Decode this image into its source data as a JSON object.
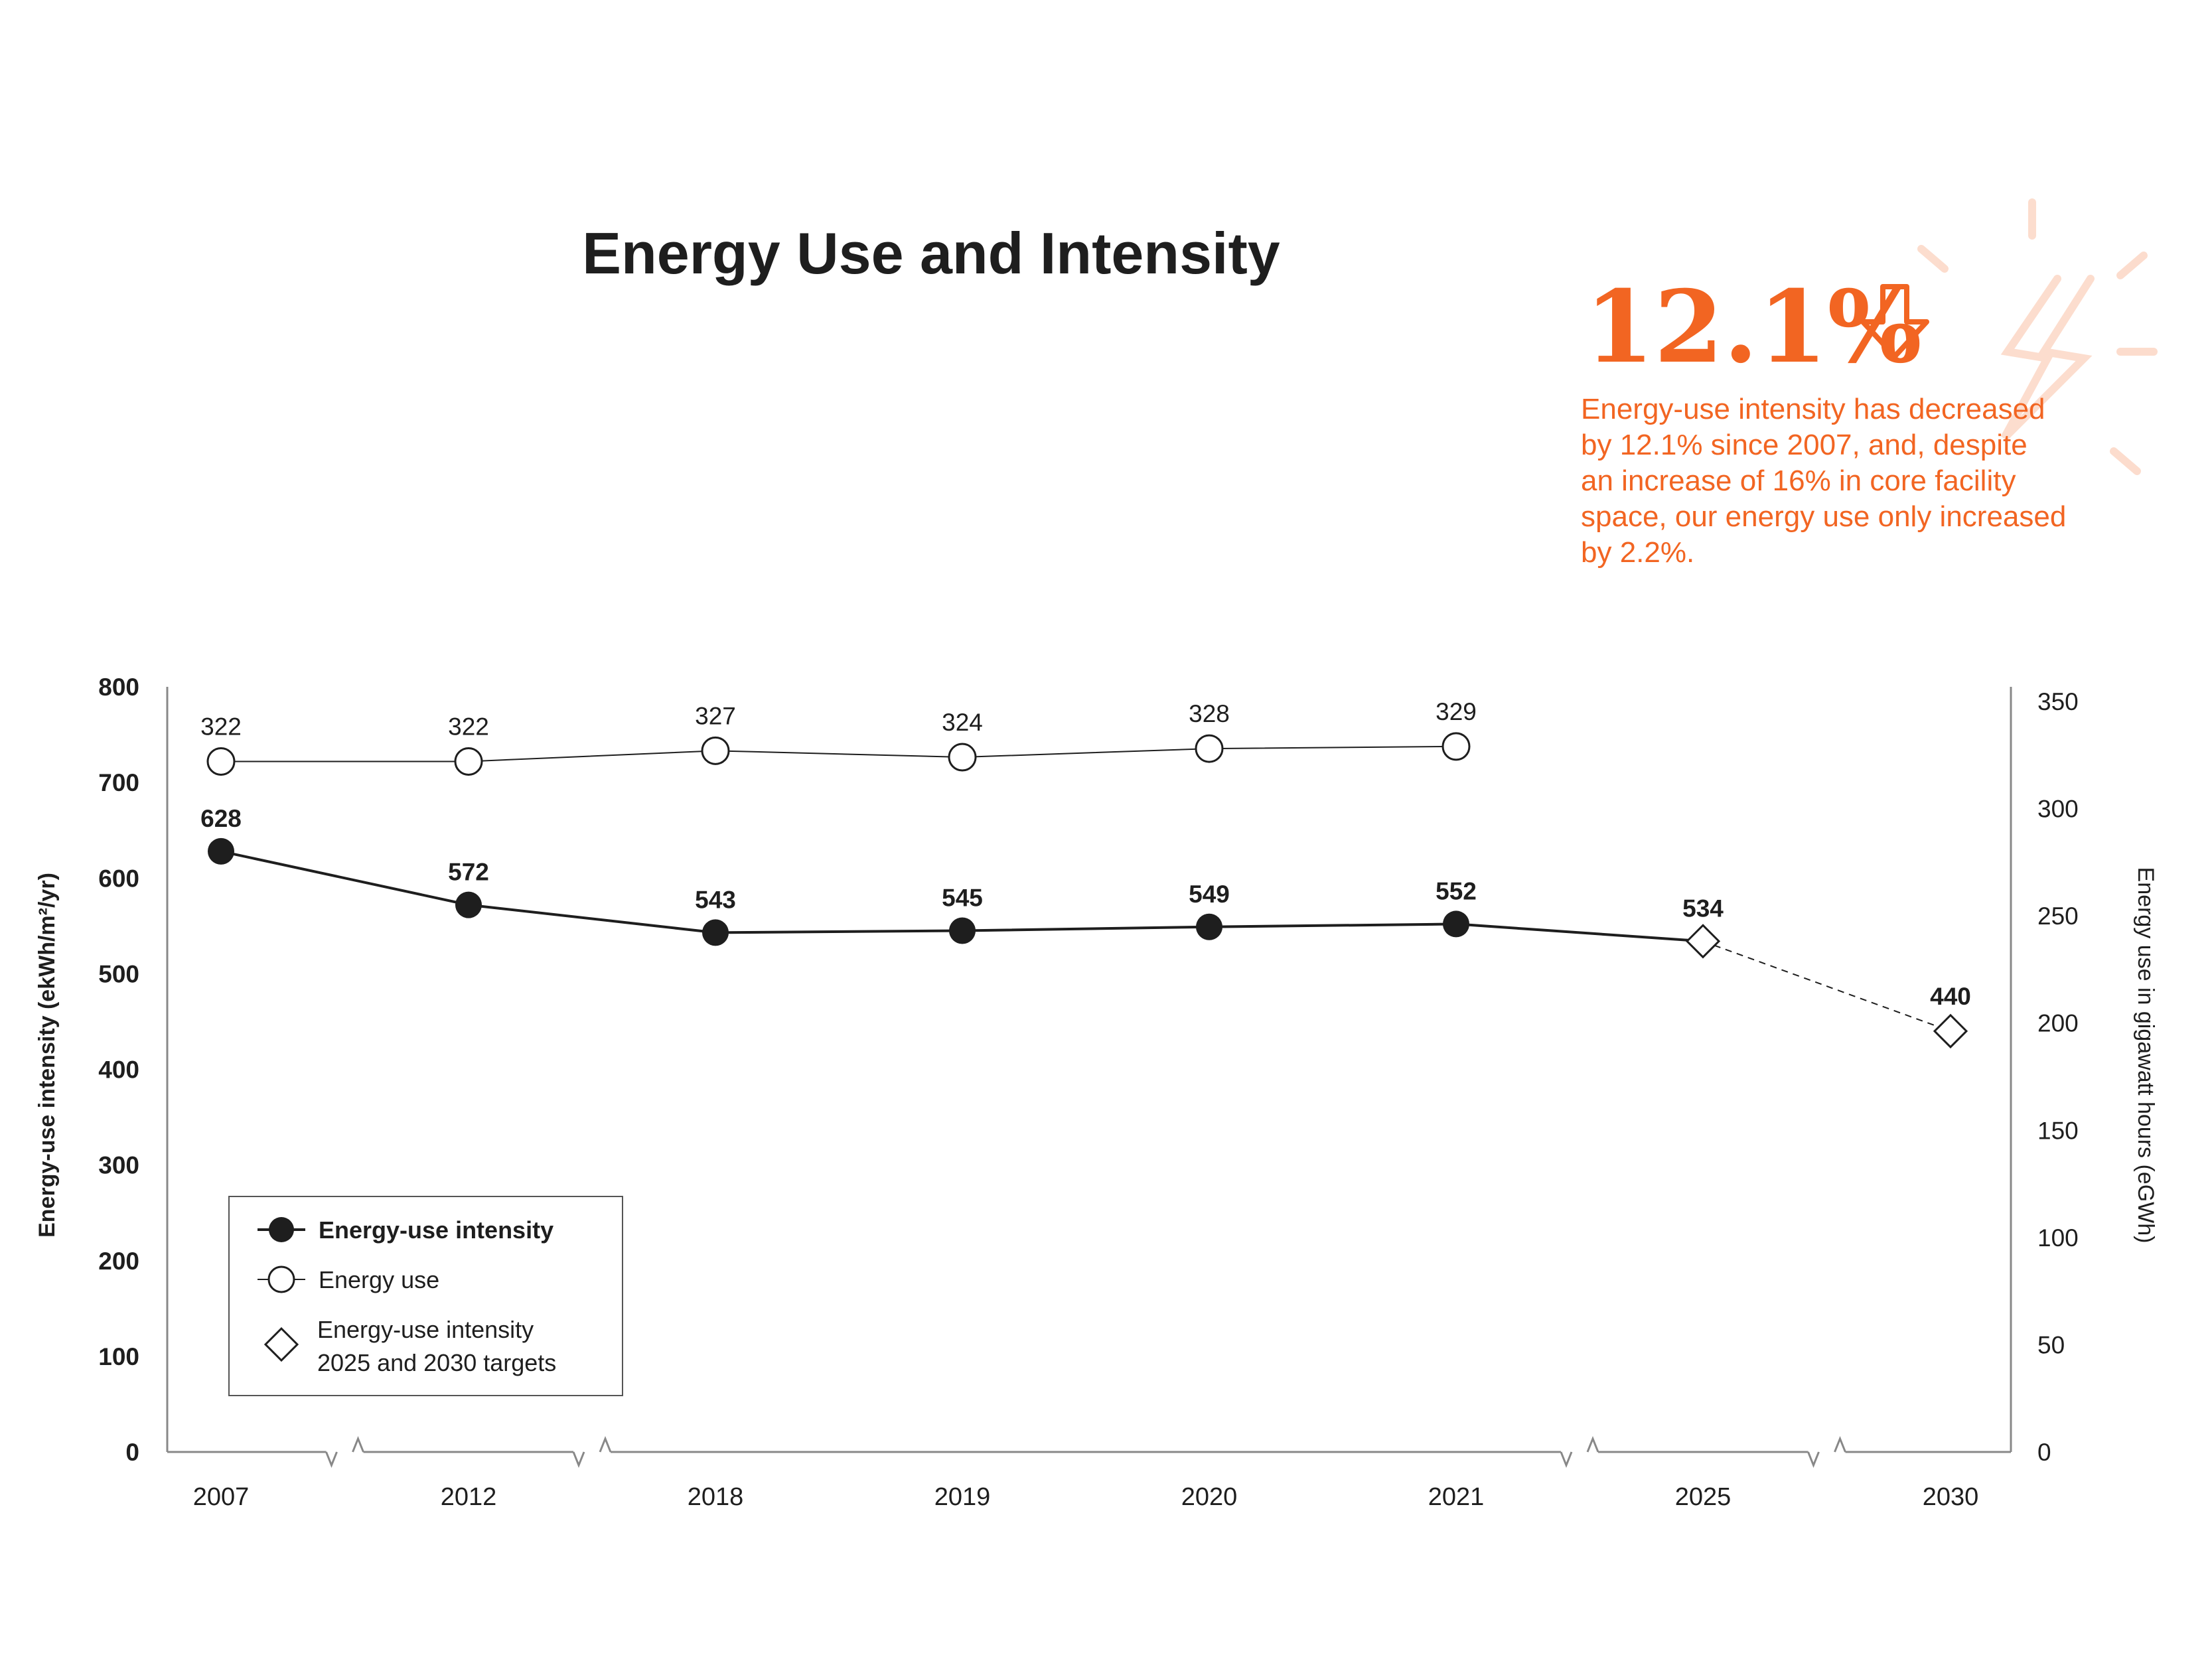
{
  "title": "Energy Use and Intensity",
  "callout": {
    "big_number": "12.1%",
    "text_lines": [
      "Energy-use intensity has decreased",
      "by 12.1% since 2007, and, despite",
      "an increase of 16% in core facility",
      "space, our energy use only increased",
      "by 2.2%."
    ],
    "accent_color": "#f26522"
  },
  "legend": {
    "item1": "Energy-use intensity",
    "item2": "Energy use",
    "item3_line1": "Energy-use intensity",
    "item3_line2": "2025 and 2030 targets"
  },
  "chart_data": {
    "type": "line",
    "title": "Energy Use and Intensity",
    "categories": [
      "2007",
      "2012",
      "2018",
      "2019",
      "2020",
      "2021",
      "2025",
      "2030"
    ],
    "ylabel": "Energy-use intensity (ekWh/m²/yr)",
    "ylabel_right": "Energy use in gigawatt hours (eGWh)",
    "ylim": [
      0,
      800
    ],
    "ylim_right": [
      0,
      350
    ],
    "yticks": [
      0,
      100,
      200,
      300,
      400,
      500,
      600,
      700,
      800
    ],
    "yticks_right": [
      0,
      50,
      100,
      150,
      200,
      250,
      300,
      350
    ],
    "axis_breaks": "between 2007-2012, 2012-2018, 2021-2025, 2025-2030",
    "grid": false,
    "legend_position": "bottom-left",
    "series": [
      {
        "name": "Energy-use intensity",
        "axis": "left",
        "marker": "filled-circle",
        "x": [
          "2007",
          "2012",
          "2018",
          "2019",
          "2020",
          "2021",
          "2025"
        ],
        "values": [
          628,
          572,
          543,
          545,
          549,
          552,
          534
        ],
        "labels": [
          "628",
          "572",
          "543",
          "545",
          "549",
          "552",
          "534"
        ]
      },
      {
        "name": "Energy use",
        "axis": "right",
        "marker": "open-circle",
        "x": [
          "2007",
          "2012",
          "2018",
          "2019",
          "2020",
          "2021"
        ],
        "values": [
          322,
          322,
          327,
          324,
          328,
          329
        ],
        "labels": [
          "322",
          "322",
          "327",
          "324",
          "328",
          "329"
        ]
      },
      {
        "name": "Energy-use intensity 2025 and 2030 targets",
        "axis": "left",
        "marker": "open-diamond",
        "line": "dashed",
        "x": [
          "2025",
          "2030"
        ],
        "values": [
          534,
          440
        ],
        "labels": [
          "",
          "440"
        ]
      }
    ]
  }
}
